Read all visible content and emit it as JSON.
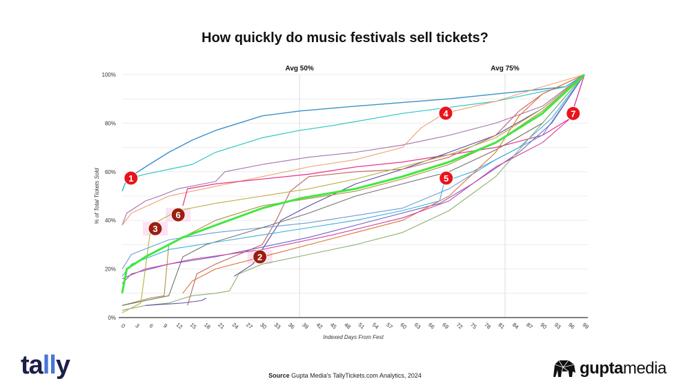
{
  "chart_data": {
    "type": "line",
    "title": "How quickly do music festivals sell tickets?",
    "xlabel": "Indexed Days From Fest",
    "ylabel": "% of Total Tickets Sold",
    "xlim": [
      0,
      99
    ],
    "ylim": [
      0,
      100
    ],
    "x_ticks": [
      0,
      3,
      6,
      9,
      12,
      15,
      18,
      21,
      24,
      27,
      30,
      33,
      36,
      39,
      42,
      45,
      48,
      51,
      54,
      57,
      60,
      63,
      66,
      69,
      72,
      75,
      78,
      81,
      84,
      87,
      90,
      93,
      96,
      99
    ],
    "y_ticks": [
      0,
      20,
      40,
      60,
      80,
      100
    ],
    "y_tick_labels": [
      "0%",
      "20%",
      "40%",
      "60%",
      "80%",
      "100%"
    ],
    "grid": "horizontal every 10%",
    "reference_lines": [
      {
        "label": "Avg 50%",
        "x": 38
      },
      {
        "label": "Avg 75%",
        "x": 82
      }
    ],
    "series": [
      {
        "color": "#3a8fc8",
        "width": 1.4,
        "points": [
          [
            0,
            52
          ],
          [
            1,
            57
          ],
          [
            5,
            62
          ],
          [
            10,
            68
          ],
          [
            15,
            73
          ],
          [
            20,
            77
          ],
          [
            25,
            80
          ],
          [
            30,
            83
          ],
          [
            38,
            85
          ],
          [
            50,
            87
          ],
          [
            70,
            90
          ],
          [
            85,
            93
          ],
          [
            95,
            95
          ],
          [
            99,
            100
          ]
        ]
      },
      {
        "color": "#2ec4c4",
        "width": 1.2,
        "points": [
          [
            0,
            52
          ],
          [
            1,
            57
          ],
          [
            5,
            59
          ],
          [
            15,
            63
          ],
          [
            20,
            68
          ],
          [
            30,
            74
          ],
          [
            38,
            77
          ],
          [
            45,
            79
          ],
          [
            60,
            84
          ],
          [
            80,
            89
          ],
          [
            95,
            95
          ],
          [
            99,
            100
          ]
        ]
      },
      {
        "color": "#a070b0",
        "width": 1.1,
        "points": [
          [
            0,
            38
          ],
          [
            1,
            43
          ],
          [
            5,
            48
          ],
          [
            8,
            50
          ],
          [
            12,
            53
          ],
          [
            20,
            56
          ],
          [
            22,
            60
          ],
          [
            30,
            63
          ],
          [
            40,
            66
          ],
          [
            50,
            68
          ],
          [
            60,
            71
          ],
          [
            70,
            75
          ],
          [
            80,
            80
          ],
          [
            90,
            87
          ],
          [
            99,
            100
          ]
        ]
      },
      {
        "color": "#f0a070",
        "width": 1.1,
        "points": [
          [
            0,
            38
          ],
          [
            2,
            43
          ],
          [
            10,
            50
          ],
          [
            20,
            54
          ],
          [
            30,
            58
          ],
          [
            40,
            62
          ],
          [
            50,
            65
          ],
          [
            60,
            70
          ],
          [
            64,
            78
          ],
          [
            69,
            84
          ],
          [
            80,
            89
          ],
          [
            90,
            95
          ],
          [
            99,
            100
          ]
        ]
      },
      {
        "color": "#e8388a",
        "width": 1.3,
        "points": [
          [
            13,
            46
          ],
          [
            14,
            53
          ],
          [
            20,
            55
          ],
          [
            30,
            57
          ],
          [
            40,
            59
          ],
          [
            50,
            62
          ],
          [
            60,
            64
          ],
          [
            70,
            67
          ],
          [
            80,
            70
          ],
          [
            90,
            75
          ],
          [
            96,
            82
          ],
          [
            99,
            100
          ]
        ]
      },
      {
        "color": "#5a4aa0",
        "width": 1.1,
        "points": [
          [
            24,
            17
          ],
          [
            28,
            22
          ],
          [
            34,
            40
          ],
          [
            40,
            46
          ],
          [
            50,
            55
          ],
          [
            60,
            61
          ],
          [
            70,
            68
          ],
          [
            80,
            75
          ],
          [
            90,
            86
          ],
          [
            99,
            100
          ]
        ]
      },
      {
        "color": "#b09040",
        "width": 1.1,
        "points": [
          [
            0,
            5
          ],
          [
            6,
            8
          ],
          [
            9,
            9
          ],
          [
            10,
            30
          ],
          [
            20,
            40
          ],
          [
            30,
            46
          ],
          [
            40,
            49
          ],
          [
            50,
            52
          ],
          [
            60,
            57
          ],
          [
            70,
            63
          ],
          [
            80,
            72
          ],
          [
            90,
            85
          ],
          [
            99,
            100
          ]
        ]
      },
      {
        "color": "#c06060",
        "width": 1.1,
        "points": [
          [
            14,
            5
          ],
          [
            16,
            18
          ],
          [
            20,
            22
          ],
          [
            30,
            30
          ],
          [
            33,
            40
          ],
          [
            36,
            52
          ],
          [
            40,
            58
          ],
          [
            50,
            60
          ],
          [
            60,
            61
          ],
          [
            70,
            66
          ],
          [
            80,
            75
          ],
          [
            85,
            85
          ],
          [
            90,
            92
          ],
          [
            99,
            100
          ]
        ]
      },
      {
        "color": "#6a9ad8",
        "width": 1.1,
        "points": [
          [
            0,
            20
          ],
          [
            2,
            26
          ],
          [
            10,
            32
          ],
          [
            20,
            35
          ],
          [
            30,
            37
          ],
          [
            40,
            39
          ],
          [
            50,
            42
          ],
          [
            60,
            45
          ],
          [
            70,
            53
          ],
          [
            80,
            65
          ],
          [
            90,
            75
          ],
          [
            99,
            100
          ]
        ]
      },
      {
        "color": "#707070",
        "width": 1.1,
        "points": [
          [
            0,
            5
          ],
          [
            5,
            7
          ],
          [
            10,
            9
          ],
          [
            13,
            25
          ],
          [
            18,
            30
          ],
          [
            30,
            37
          ],
          [
            40,
            43
          ],
          [
            50,
            50
          ],
          [
            60,
            55
          ],
          [
            70,
            60
          ],
          [
            80,
            69
          ],
          [
            90,
            80
          ],
          [
            99,
            100
          ]
        ]
      },
      {
        "color": "#6a60c8",
        "width": 1.1,
        "points": [
          [
            0,
            14
          ],
          [
            2,
            18
          ],
          [
            10,
            22
          ],
          [
            20,
            25
          ],
          [
            30,
            29
          ],
          [
            40,
            33
          ],
          [
            50,
            38
          ],
          [
            60,
            43
          ],
          [
            68,
            47
          ],
          [
            75,
            55
          ],
          [
            85,
            68
          ],
          [
            92,
            80
          ],
          [
            99,
            100
          ]
        ]
      },
      {
        "color": "#38b0d8",
        "width": 1.1,
        "points": [
          [
            0,
            17
          ],
          [
            2,
            22
          ],
          [
            10,
            28
          ],
          [
            20,
            31
          ],
          [
            30,
            34
          ],
          [
            40,
            37
          ],
          [
            50,
            40
          ],
          [
            60,
            44
          ],
          [
            68,
            48
          ],
          [
            69,
            56
          ],
          [
            75,
            60
          ],
          [
            85,
            70
          ],
          [
            92,
            82
          ],
          [
            99,
            100
          ]
        ]
      },
      {
        "color": "#e07030",
        "width": 1.1,
        "points": [
          [
            13,
            10
          ],
          [
            15,
            15
          ],
          [
            20,
            20
          ],
          [
            30,
            25
          ],
          [
            40,
            30
          ],
          [
            50,
            35
          ],
          [
            60,
            40
          ],
          [
            70,
            50
          ],
          [
            80,
            68
          ],
          [
            85,
            83
          ],
          [
            90,
            92
          ],
          [
            99,
            100
          ]
        ]
      },
      {
        "color": "#8ab070",
        "width": 1.1,
        "points": [
          [
            0,
            3
          ],
          [
            5,
            5
          ],
          [
            10,
            6
          ],
          [
            15,
            9
          ],
          [
            20,
            10
          ],
          [
            23,
            11
          ],
          [
            25,
            18
          ],
          [
            30,
            22
          ],
          [
            40,
            26
          ],
          [
            50,
            30
          ],
          [
            60,
            35
          ],
          [
            70,
            44
          ],
          [
            80,
            58
          ],
          [
            90,
            80
          ],
          [
            99,
            100
          ]
        ]
      },
      {
        "color": "#6050b0",
        "width": 1.1,
        "points": [
          [
            5,
            5
          ],
          [
            13,
            6
          ],
          [
            17,
            7
          ],
          [
            18,
            8
          ]
        ]
      },
      {
        "color": "#b8b040",
        "width": 1.1,
        "points": [
          [
            0,
            2
          ],
          [
            4,
            6
          ],
          [
            6,
            35
          ],
          [
            8,
            40
          ],
          [
            12,
            44
          ],
          [
            20,
            47
          ],
          [
            30,
            50
          ],
          [
            40,
            53
          ],
          [
            50,
            57
          ],
          [
            60,
            62
          ],
          [
            70,
            67
          ],
          [
            80,
            74
          ],
          [
            90,
            86
          ],
          [
            99,
            100
          ]
        ]
      },
      {
        "color": "#d040a0",
        "width": 1.1,
        "points": [
          [
            0,
            16
          ],
          [
            5,
            20
          ],
          [
            15,
            24
          ],
          [
            30,
            28
          ],
          [
            45,
            34
          ],
          [
            60,
            41
          ],
          [
            70,
            48
          ],
          [
            80,
            62
          ],
          [
            90,
            72
          ],
          [
            96,
            82
          ],
          [
            99,
            100
          ]
        ]
      },
      {
        "color": "#3ee83e",
        "width": 3,
        "points": [
          [
            0,
            10
          ],
          [
            1,
            20
          ],
          [
            5,
            25
          ],
          [
            9,
            29
          ],
          [
            13,
            33
          ],
          [
            20,
            38
          ],
          [
            30,
            45
          ],
          [
            38,
            49
          ],
          [
            50,
            53
          ],
          [
            60,
            58
          ],
          [
            70,
            64
          ],
          [
            80,
            72
          ],
          [
            90,
            84
          ],
          [
            99,
            100
          ]
        ]
      }
    ],
    "annotations": [
      {
        "label": "1",
        "x": 1.9,
        "y": 57.4,
        "color": "#e8141c"
      },
      {
        "label": "2",
        "x": 29.5,
        "y": 25,
        "color": "#9a1e10"
      },
      {
        "label": "3",
        "x": 7.1,
        "y": 36.6,
        "color": "#9a1e10"
      },
      {
        "label": "4",
        "x": 69.3,
        "y": 84.1,
        "color": "#e8141c"
      },
      {
        "label": "5",
        "x": 69.4,
        "y": 57.4,
        "color": "#e8141c"
      },
      {
        "label": "6",
        "x": 12,
        "y": 42.3,
        "color": "#9a1e10"
      },
      {
        "label": "7",
        "x": 96.6,
        "y": 84,
        "color": "#e8141c"
      }
    ]
  },
  "footer": {
    "source_label": "Source",
    "source_text": "Gupta Media's TallyTickets.com Analytics, 2024"
  },
  "logos": {
    "left": "tally",
    "right": "guptamedia"
  }
}
